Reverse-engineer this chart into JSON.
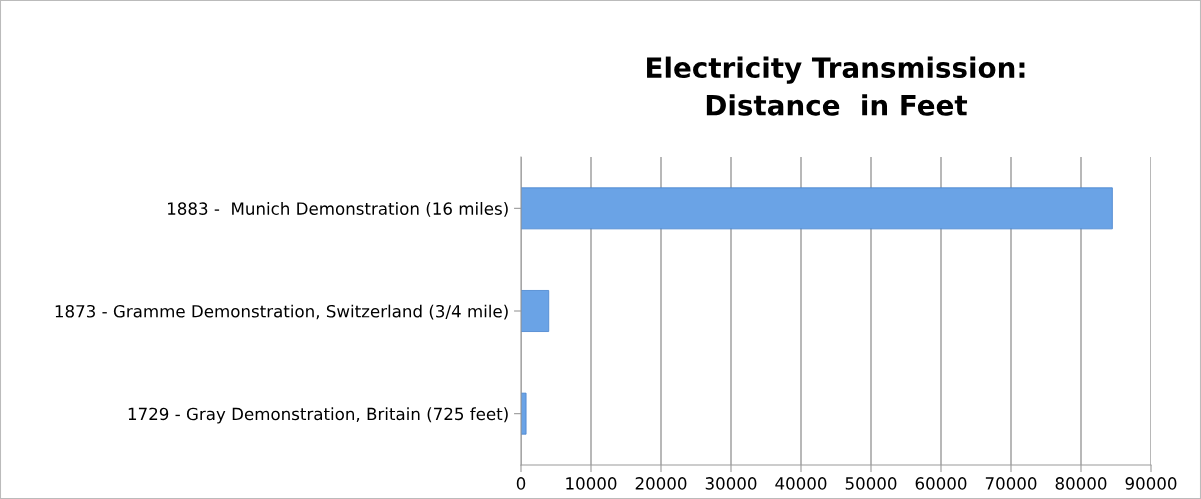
{
  "chart_data": {
    "type": "bar",
    "orientation": "horizontal",
    "title": "Electricity Transmission:\nDistance  in Feet",
    "categories": [
      "1883 -  Munich Demonstration (16 miles)",
      "1873 - Gramme Demonstration, Switzerland (3/4 mile)",
      "1729 - Gray Demonstration, Britain (725 feet)"
    ],
    "values": [
      84480,
      3960,
      725
    ],
    "color": "#6aa3e6",
    "xlim": [
      0,
      90000
    ],
    "xticks": [
      0,
      10000,
      20000,
      30000,
      40000,
      50000,
      60000,
      70000,
      80000,
      90000
    ],
    "grid": "x"
  }
}
